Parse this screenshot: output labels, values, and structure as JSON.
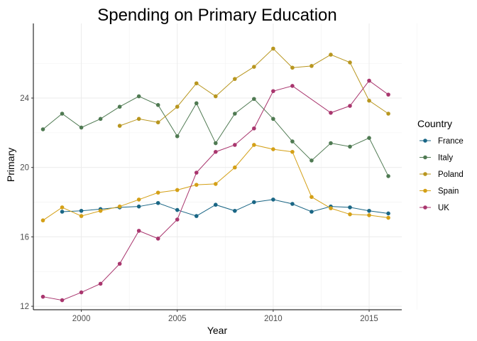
{
  "chart_data": {
    "type": "line",
    "title": "Spending on Primary Education",
    "xlabel": "Year",
    "ylabel": "Primary",
    "xlim": [
      1997.5,
      2016.7
    ],
    "ylim": [
      11.8,
      28.3
    ],
    "x_ticks": [
      2000,
      2005,
      2010,
      2015
    ],
    "y_ticks": [
      12,
      16,
      20,
      24
    ],
    "grid": true,
    "legend_title": "Country",
    "legend_position": "right",
    "series": [
      {
        "name": "France",
        "color": "#1a6685",
        "x": [
          1999,
          2000,
          2001,
          2002,
          2003,
          2004,
          2005,
          2006,
          2007,
          2008,
          2009,
          2010,
          2011,
          2012,
          2013,
          2014,
          2015,
          2016
        ],
        "y": [
          17.45,
          17.5,
          17.6,
          17.7,
          17.75,
          17.95,
          17.55,
          17.2,
          17.85,
          17.5,
          18.0,
          18.15,
          17.9,
          17.45,
          17.75,
          17.7,
          17.5,
          17.35
        ]
      },
      {
        "name": "Italy",
        "color": "#4f7a52",
        "x": [
          1998,
          1999,
          2000,
          2001,
          2002,
          2003,
          2004,
          2005,
          2006,
          2007,
          2008,
          2009,
          2010,
          2011,
          2012,
          2013,
          2014,
          2015,
          2016
        ],
        "y": [
          22.2,
          23.1,
          22.3,
          22.8,
          23.5,
          24.1,
          23.6,
          21.8,
          23.7,
          21.4,
          23.1,
          23.95,
          22.8,
          21.5,
          20.4,
          21.4,
          21.2,
          21.7,
          19.5
        ]
      },
      {
        "name": "Poland",
        "color": "#b8961f",
        "x": [
          2002,
          2003,
          2004,
          2005,
          2006,
          2007,
          2008,
          2009,
          2010,
          2011,
          2012,
          2013,
          2014,
          2015,
          2016
        ],
        "y": [
          22.4,
          22.8,
          22.6,
          23.5,
          24.85,
          24.1,
          25.1,
          25.8,
          26.85,
          25.75,
          25.85,
          26.5,
          26.05,
          23.85,
          23.1
        ]
      },
      {
        "name": "Spain",
        "color": "#d4a017",
        "x": [
          1998,
          1999,
          2000,
          2001,
          2002,
          2003,
          2004,
          2005,
          2006,
          2007,
          2008,
          2009,
          2010,
          2011,
          2012,
          2013,
          2014,
          2015,
          2016
        ],
        "y": [
          16.95,
          17.7,
          17.2,
          17.5,
          17.75,
          18.15,
          18.55,
          18.7,
          19.0,
          19.05,
          20.0,
          21.3,
          21.05,
          20.9,
          18.3,
          17.65,
          17.3,
          17.25,
          17.1
        ]
      },
      {
        "name": "UK",
        "color": "#a9366e",
        "x": [
          1998,
          1999,
          2000,
          2001,
          2002,
          2003,
          2004,
          2005,
          2006,
          2007,
          2008,
          2009,
          2010,
          2011,
          2013,
          2014,
          2015,
          2016
        ],
        "y": [
          12.55,
          12.35,
          12.8,
          13.3,
          14.45,
          16.35,
          15.9,
          17.0,
          19.7,
          20.9,
          21.3,
          22.25,
          24.4,
          24.7,
          23.15,
          23.55,
          25.0,
          24.2
        ]
      }
    ]
  }
}
